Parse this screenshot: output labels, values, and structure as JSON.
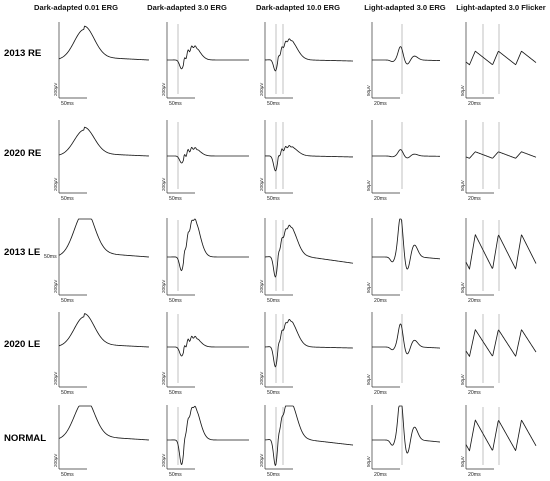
{
  "chart_data": {
    "type": "line",
    "columns": [
      {
        "title": "Dark-adapted 0.01 ERG",
        "y_scale": "200µV",
        "x_scale": "50ms"
      },
      {
        "title": "Dark-adapted 3.0 ERG",
        "y_scale": "200µV",
        "x_scale": "50ms"
      },
      {
        "title": "Dark-adapted 10.0 ERG",
        "y_scale": "200µV",
        "x_scale": "50ms"
      },
      {
        "title": "Light-adapted 3.0 ERG",
        "y_scale": "50µV",
        "x_scale": "20ms"
      },
      {
        "title": "Light-adapted 3.0 Flicker",
        "y_scale": "50µV",
        "x_scale": "20ms"
      }
    ],
    "rows": [
      {
        "label": "2013 RE"
      },
      {
        "label": "2020 RE"
      },
      {
        "label": "2013 LE",
        "marker_text": "50ms"
      },
      {
        "label": "2020 LE"
      },
      {
        "label": "NORMAL"
      }
    ],
    "traces": [
      [
        {
          "amp": 0.45
        },
        {
          "amp": 0.4
        },
        {
          "amp": 0.65
        },
        {
          "amp": 0.45
        },
        {
          "amp": 0.7
        }
      ],
      [
        {
          "a": 0.15,
          "b": 0.2
        },
        {
          "a": 0.12,
          "b": 0.12
        },
        {
          "a": 0.25,
          "b": 0.55
        },
        {
          "a": 0.15,
          "b": 0.15
        },
        {
          "a": 0.5,
          "b": 0.6
        }
      ],
      [
        {
          "a": 0.2,
          "b": 0.3
        },
        {
          "a": 0.25,
          "b": 0.15
        },
        {
          "a": 0.35,
          "b": 0.45
        },
        {
          "a": 0.35,
          "b": 0.4
        },
        {
          "a": 0.55,
          "b": 0.7
        }
      ],
      [
        {
          "amp": 0.2
        },
        {
          "amp": 0.1
        },
        {
          "amp": 0.6
        },
        {
          "amp": 0.35
        },
        {
          "amp": 0.8
        }
      ],
      [
        {
          "amp": 0.2
        },
        {
          "amp": 0.1
        },
        {
          "amp": 0.5
        },
        {
          "amp": 0.4
        },
        {
          "amp": 0.55
        }
      ]
    ]
  }
}
